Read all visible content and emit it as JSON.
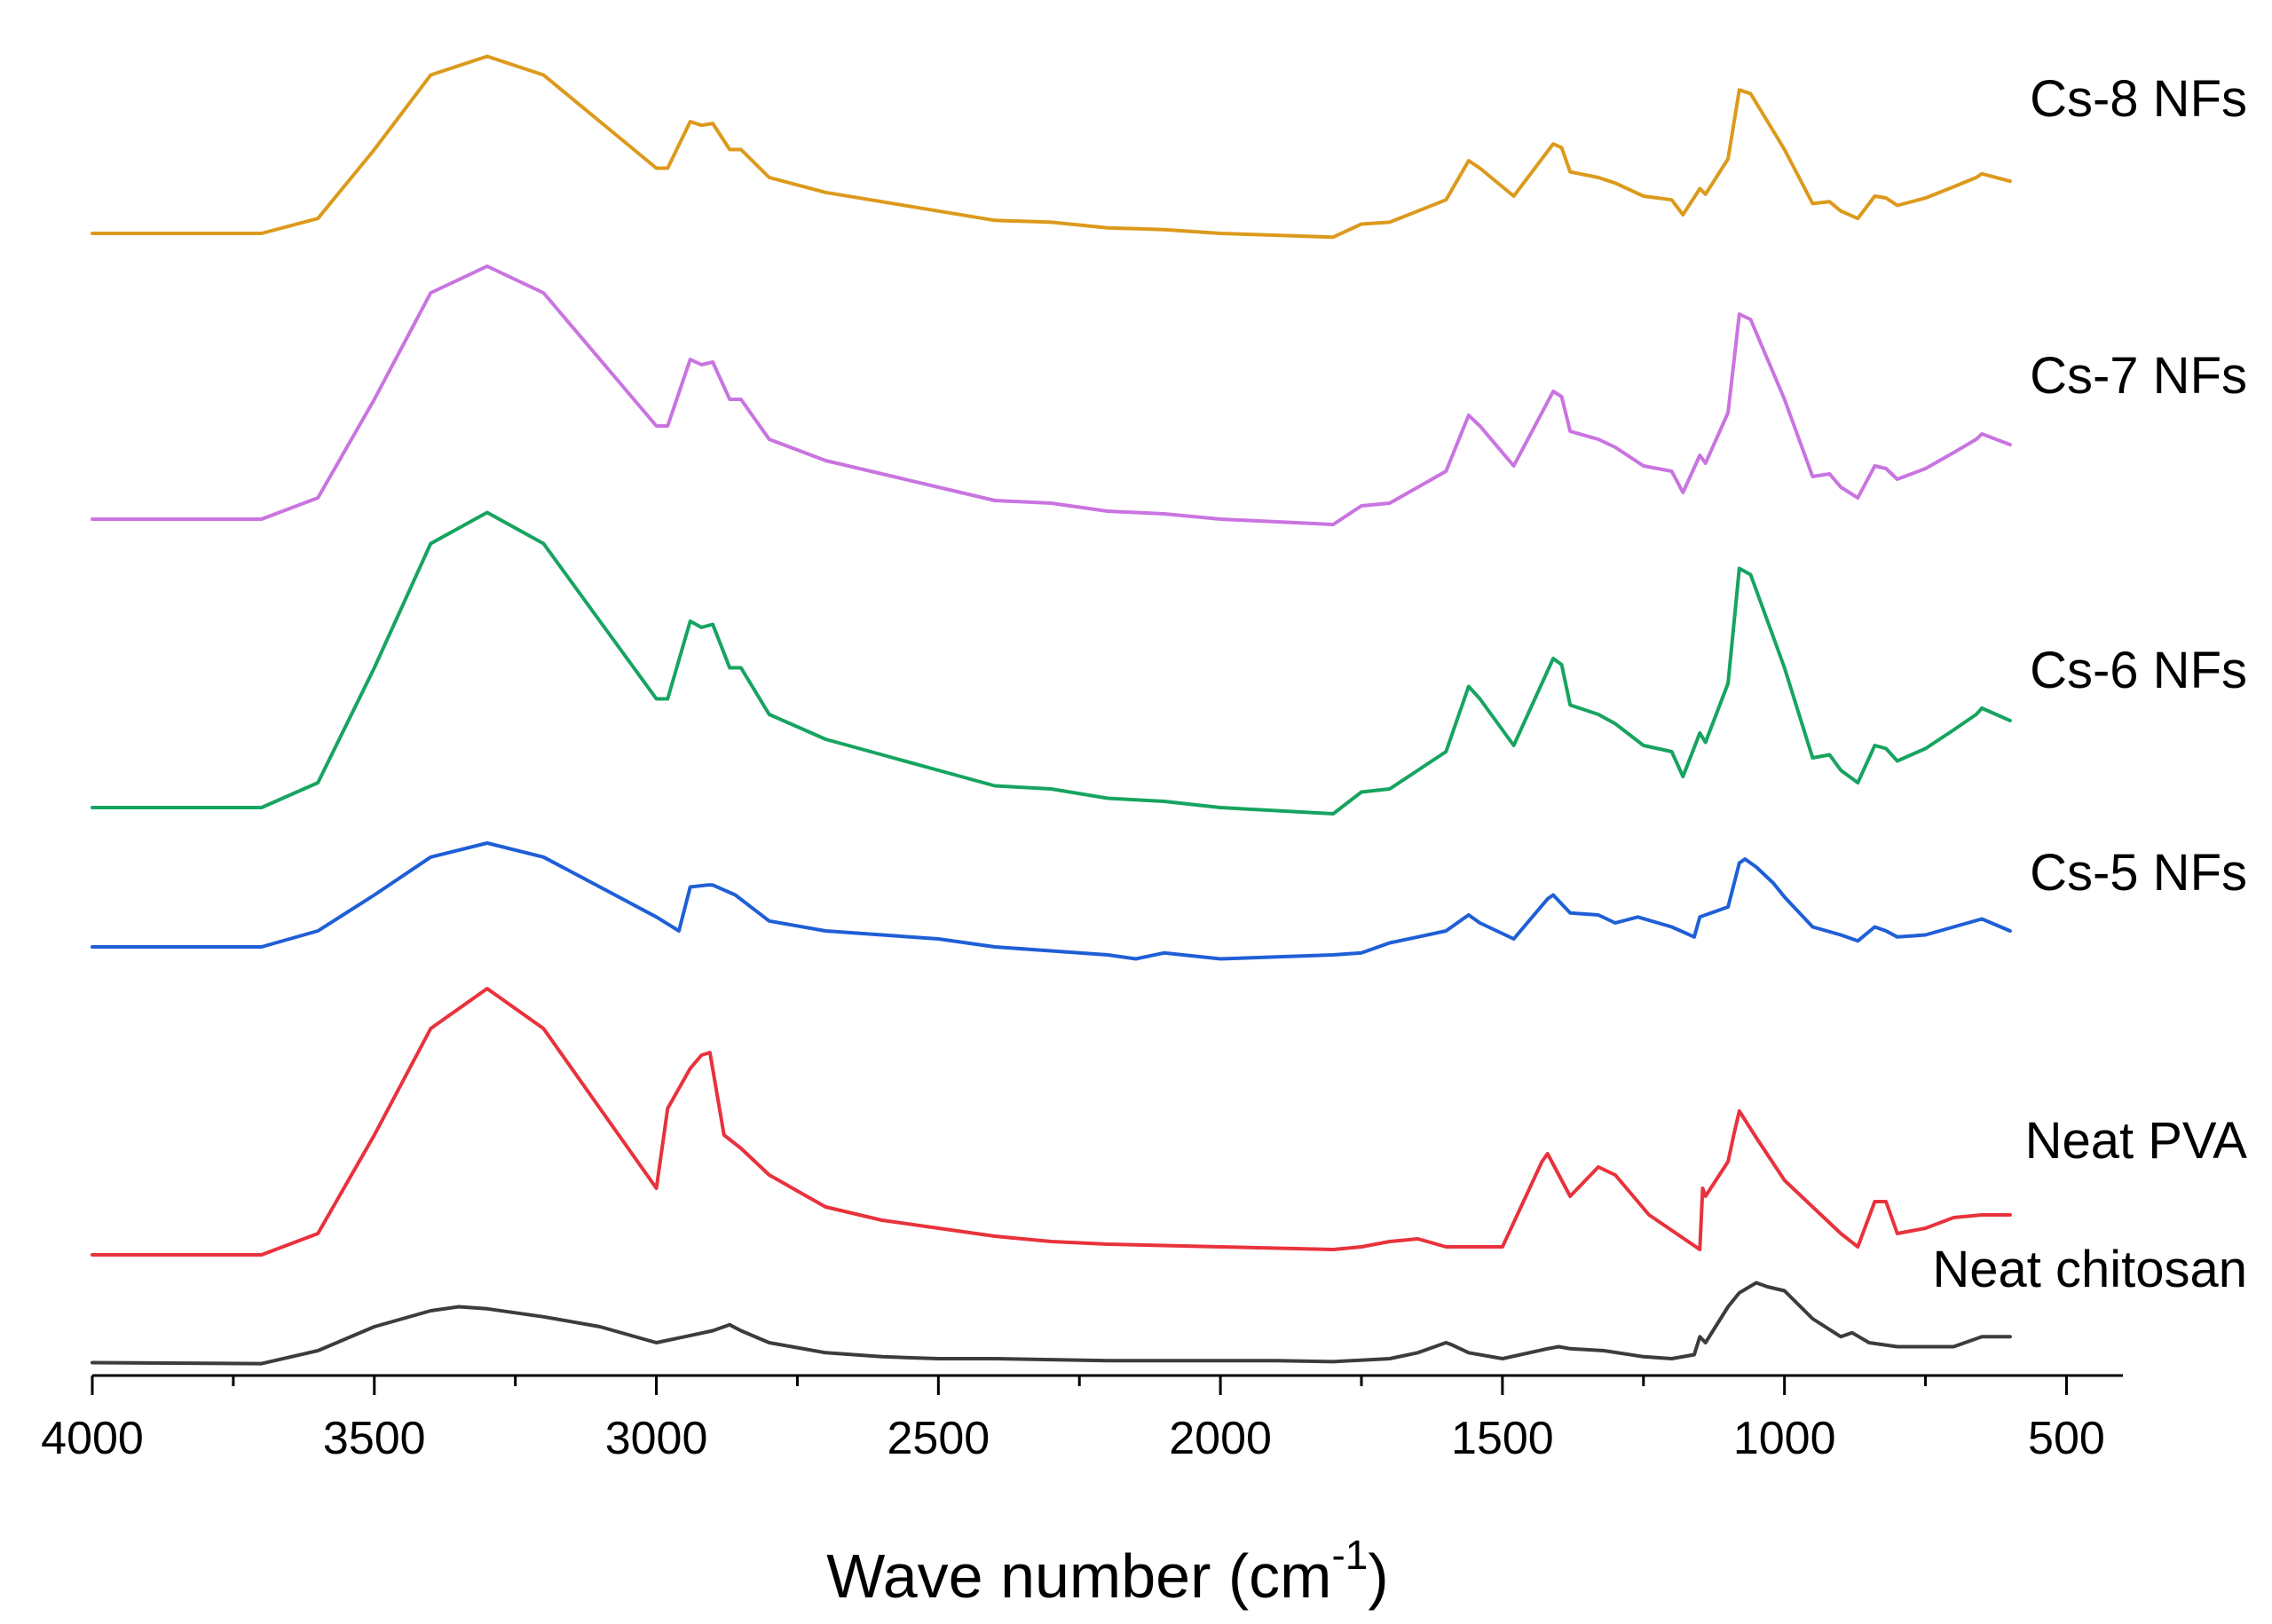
{
  "chart_data": {
    "type": "line",
    "title": "",
    "xlabel": "Wave number (cm",
    "xlabel_sup": "-1",
    "xlabel_close": ")",
    "ylabel": "",
    "xlim": [
      4000,
      400
    ],
    "x_reversed": true,
    "y_axis_visible": false,
    "grid": false,
    "legend": "labels at right end of each trace",
    "xticks": [
      4000,
      3500,
      3000,
      2500,
      2000,
      1500,
      1000,
      500
    ],
    "xtick_labels": [
      "4000",
      "3500",
      "3000",
      "2500",
      "2000",
      "1500",
      "1000",
      "500"
    ],
    "series": [
      {
        "name": "Neat chitosan",
        "color": "#3c3c3c",
        "x": [
          4000,
          3700,
          3600,
          3500,
          3400,
          3350,
          3300,
          3200,
          3100,
          3000,
          2950,
          2900,
          2870,
          2850,
          2800,
          2700,
          2600,
          2500,
          2400,
          2300,
          2200,
          2100,
          2000,
          1900,
          1800,
          1700,
          1650,
          1600,
          1590,
          1560,
          1500,
          1420,
          1400,
          1380,
          1320,
          1250,
          1200,
          1160,
          1150,
          1140,
          1100,
          1080,
          1050,
          1030,
          1000,
          950,
          900,
          880,
          850,
          800,
          700,
          650,
          600
        ],
        "y": [
          0.02,
          0.015,
          0.08,
          0.2,
          0.28,
          0.3,
          0.29,
          0.25,
          0.2,
          0.12,
          0.15,
          0.18,
          0.21,
          0.18,
          0.12,
          0.07,
          0.05,
          0.04,
          0.04,
          0.035,
          0.03,
          0.03,
          0.03,
          0.03,
          0.025,
          0.04,
          0.07,
          0.12,
          0.11,
          0.07,
          0.04,
          0.09,
          0.1,
          0.09,
          0.08,
          0.05,
          0.04,
          0.06,
          0.15,
          0.12,
          0.3,
          0.37,
          0.42,
          0.4,
          0.38,
          0.24,
          0.15,
          0.17,
          0.12,
          0.1,
          0.1,
          0.15,
          0.15
        ]
      },
      {
        "name": "Neat PVA",
        "color": "#e8323c",
        "x": [
          4000,
          3700,
          3600,
          3500,
          3400,
          3300,
          3200,
          3100,
          3000,
          2980,
          2940,
          2920,
          2905,
          2880,
          2850,
          2800,
          2700,
          2600,
          2500,
          2400,
          2300,
          2200,
          2100,
          2000,
          1900,
          1800,
          1750,
          1700,
          1650,
          1600,
          1550,
          1500,
          1430,
          1420,
          1380,
          1330,
          1300,
          1240,
          1150,
          1145,
          1140,
          1100,
          1090,
          1080,
          1050,
          1000,
          950,
          900,
          870,
          840,
          820,
          800,
          750,
          700,
          650,
          600
        ],
        "y": [
          0.0,
          0.0,
          0.08,
          0.45,
          0.85,
          1.0,
          0.85,
          0.55,
          0.25,
          0.55,
          0.7,
          0.75,
          0.76,
          0.45,
          0.4,
          0.3,
          0.18,
          0.13,
          0.1,
          0.07,
          0.05,
          0.04,
          0.035,
          0.03,
          0.025,
          0.02,
          0.03,
          0.05,
          0.06,
          0.03,
          0.03,
          0.03,
          0.35,
          0.38,
          0.22,
          0.33,
          0.3,
          0.15,
          0.02,
          0.25,
          0.22,
          0.35,
          0.45,
          0.54,
          0.44,
          0.28,
          0.18,
          0.08,
          0.03,
          0.2,
          0.2,
          0.08,
          0.1,
          0.14,
          0.15,
          0.15
        ]
      },
      {
        "name": "Cs-5 NFs",
        "color": "#1f5fd6",
        "x": [
          4000,
          3700,
          3600,
          3500,
          3400,
          3300,
          3200,
          3100,
          3000,
          2960,
          2940,
          2910,
          2900,
          2860,
          2800,
          2700,
          2600,
          2500,
          2400,
          2300,
          2200,
          2150,
          2100,
          2000,
          1900,
          1800,
          1750,
          1700,
          1650,
          1600,
          1560,
          1540,
          1480,
          1420,
          1410,
          1380,
          1330,
          1300,
          1260,
          1200,
          1160,
          1150,
          1100,
          1080,
          1070,
          1050,
          1020,
          1000,
          950,
          900,
          870,
          840,
          820,
          800,
          750,
          700,
          650,
          600
        ],
        "y": [
          0.0,
          0.0,
          0.08,
          0.26,
          0.45,
          0.52,
          0.45,
          0.3,
          0.15,
          0.08,
          0.3,
          0.31,
          0.31,
          0.26,
          0.13,
          0.08,
          0.06,
          0.04,
          0.0,
          -0.02,
          -0.04,
          -0.06,
          -0.03,
          -0.06,
          -0.05,
          -0.04,
          -0.03,
          0.02,
          0.05,
          0.08,
          0.16,
          0.12,
          0.04,
          0.24,
          0.26,
          0.17,
          0.16,
          0.12,
          0.15,
          0.1,
          0.05,
          0.15,
          0.2,
          0.42,
          0.44,
          0.4,
          0.32,
          0.25,
          0.1,
          0.06,
          0.03,
          0.1,
          0.08,
          0.05,
          0.06,
          0.1,
          0.14,
          0.08
        ]
      },
      {
        "name": "Cs-6 NFs",
        "color": "#17a460",
        "x": [
          4000,
          3700,
          3600,
          3500,
          3400,
          3300,
          3200,
          3100,
          3000,
          2980,
          2940,
          2920,
          2900,
          2870,
          2850,
          2800,
          2700,
          2600,
          2500,
          2400,
          2300,
          2200,
          2100,
          2000,
          1900,
          1800,
          1750,
          1700,
          1650,
          1600,
          1560,
          1540,
          1480,
          1410,
          1395,
          1380,
          1330,
          1300,
          1250,
          1200,
          1180,
          1150,
          1140,
          1100,
          1080,
          1060,
          1020,
          1000,
          950,
          920,
          900,
          870,
          840,
          820,
          800,
          750,
          700,
          660,
          650,
          600
        ],
        "y": [
          0.0,
          0.0,
          0.08,
          0.45,
          0.85,
          0.95,
          0.85,
          0.6,
          0.35,
          0.35,
          0.6,
          0.58,
          0.59,
          0.45,
          0.45,
          0.3,
          0.22,
          0.17,
          0.12,
          0.07,
          0.06,
          0.03,
          0.02,
          0.0,
          -0.01,
          -0.02,
          0.05,
          0.06,
          0.12,
          0.18,
          0.39,
          0.35,
          0.2,
          0.48,
          0.46,
          0.33,
          0.3,
          0.27,
          0.2,
          0.18,
          0.1,
          0.24,
          0.21,
          0.4,
          0.77,
          0.75,
          0.55,
          0.45,
          0.16,
          0.17,
          0.12,
          0.08,
          0.2,
          0.19,
          0.15,
          0.19,
          0.25,
          0.3,
          0.32,
          0.28
        ]
      },
      {
        "name": "Cs-7 NFs",
        "color": "#c974e0",
        "x": [
          4000,
          3700,
          3600,
          3500,
          3400,
          3300,
          3200,
          3100,
          3000,
          2980,
          2940,
          2920,
          2900,
          2870,
          2850,
          2800,
          2700,
          2600,
          2500,
          2400,
          2300,
          2200,
          2100,
          2000,
          1900,
          1800,
          1750,
          1700,
          1650,
          1600,
          1560,
          1540,
          1480,
          1410,
          1395,
          1380,
          1330,
          1300,
          1250,
          1200,
          1180,
          1150,
          1140,
          1100,
          1080,
          1060,
          1020,
          1000,
          950,
          920,
          900,
          870,
          840,
          820,
          800,
          750,
          700,
          660,
          650,
          600
        ],
        "y": [
          0.0,
          0.0,
          0.08,
          0.45,
          0.85,
          0.95,
          0.85,
          0.6,
          0.35,
          0.35,
          0.6,
          0.58,
          0.59,
          0.45,
          0.45,
          0.3,
          0.22,
          0.17,
          0.12,
          0.07,
          0.06,
          0.03,
          0.02,
          0.0,
          -0.01,
          -0.02,
          0.05,
          0.06,
          0.12,
          0.18,
          0.39,
          0.35,
          0.2,
          0.48,
          0.46,
          0.33,
          0.3,
          0.27,
          0.2,
          0.18,
          0.1,
          0.24,
          0.21,
          0.4,
          0.77,
          0.75,
          0.55,
          0.45,
          0.16,
          0.17,
          0.12,
          0.08,
          0.2,
          0.19,
          0.15,
          0.19,
          0.25,
          0.3,
          0.32,
          0.28
        ]
      },
      {
        "name": "Cs-8 NFs",
        "color": "#dc9a1c",
        "x": [
          4000,
          3700,
          3600,
          3500,
          3400,
          3300,
          3200,
          3100,
          3000,
          2980,
          2940,
          2920,
          2900,
          2870,
          2850,
          2800,
          2700,
          2600,
          2500,
          2400,
          2300,
          2200,
          2100,
          2000,
          1900,
          1800,
          1750,
          1700,
          1650,
          1600,
          1560,
          1540,
          1480,
          1410,
          1395,
          1380,
          1330,
          1300,
          1250,
          1200,
          1180,
          1150,
          1140,
          1100,
          1080,
          1060,
          1020,
          1000,
          950,
          920,
          900,
          870,
          840,
          820,
          800,
          750,
          700,
          660,
          650,
          600
        ],
        "y": [
          0.0,
          0.0,
          0.08,
          0.45,
          0.85,
          0.95,
          0.85,
          0.6,
          0.35,
          0.35,
          0.6,
          0.58,
          0.59,
          0.45,
          0.45,
          0.3,
          0.22,
          0.17,
          0.12,
          0.07,
          0.06,
          0.03,
          0.02,
          0.0,
          -0.01,
          -0.02,
          0.05,
          0.06,
          0.12,
          0.18,
          0.39,
          0.35,
          0.2,
          0.48,
          0.46,
          0.33,
          0.3,
          0.27,
          0.2,
          0.18,
          0.1,
          0.24,
          0.21,
          0.4,
          0.77,
          0.75,
          0.55,
          0.45,
          0.16,
          0.17,
          0.12,
          0.08,
          0.2,
          0.19,
          0.15,
          0.19,
          0.25,
          0.3,
          0.32,
          0.28
        ]
      }
    ]
  }
}
